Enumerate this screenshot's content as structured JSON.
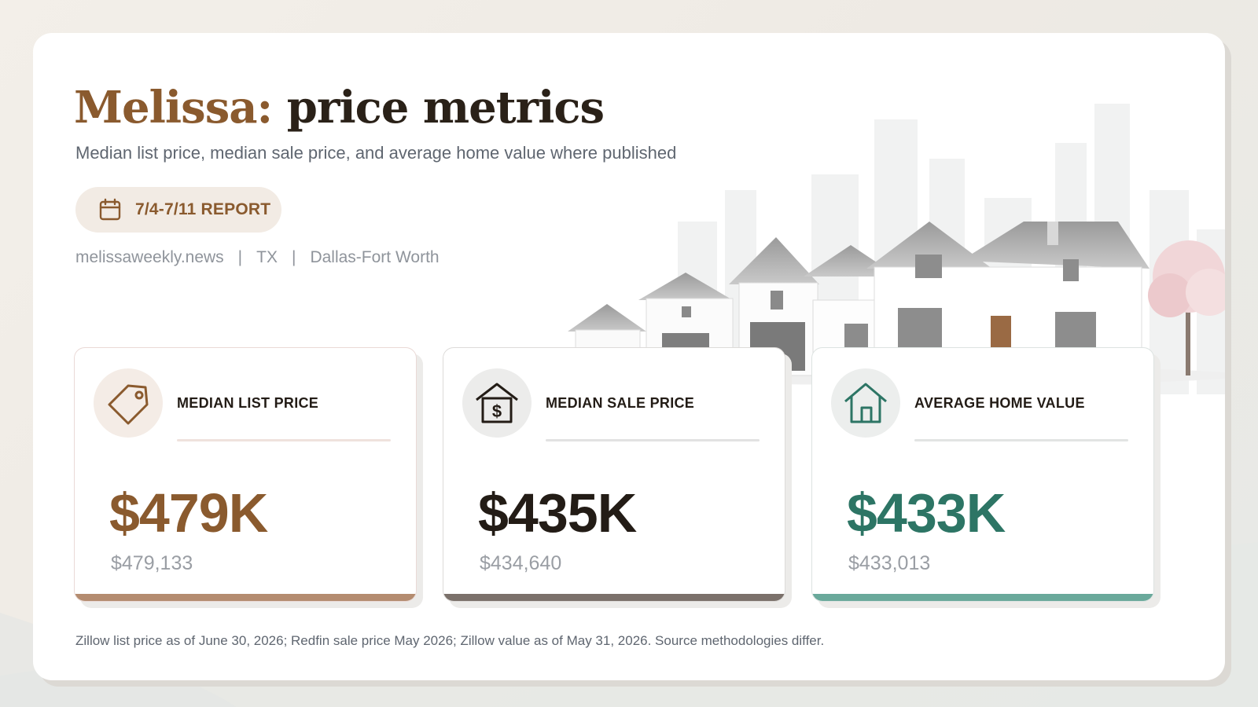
{
  "header": {
    "title_place": "Melissa:",
    "title_rest": "price metrics",
    "subtitle": "Median list price, median sale price, and average home value where published"
  },
  "report_pill": {
    "icon": "calendar-icon",
    "label": "7/4-7/11 REPORT"
  },
  "meta": {
    "site": "melissaweekly.news",
    "separator": "|",
    "state": "TX",
    "metro": "Dallas-Fort Worth"
  },
  "cards": [
    {
      "icon": "price-tag-icon",
      "label": "MEDIAN LIST PRICE",
      "value": "$479K",
      "exact": "$479,133",
      "accent_color": "#8a5a2e",
      "bar_color": "#b48c70"
    },
    {
      "icon": "house-dollar-icon",
      "label": "MEDIAN SALE PRICE",
      "value": "$435K",
      "exact": "$434,640",
      "accent_color": "#231c16",
      "bar_color": "#7b716b"
    },
    {
      "icon": "home-icon",
      "label": "AVERAGE HOME VALUE",
      "value": "$433K",
      "exact": "$433,013",
      "accent_color": "#2d7565",
      "bar_color": "#6aa99b"
    }
  ],
  "footnote": "Zillow list price as of June 30, 2026; Redfin sale price May 2026; Zillow value as of May 31, 2026. Source methodologies differ."
}
